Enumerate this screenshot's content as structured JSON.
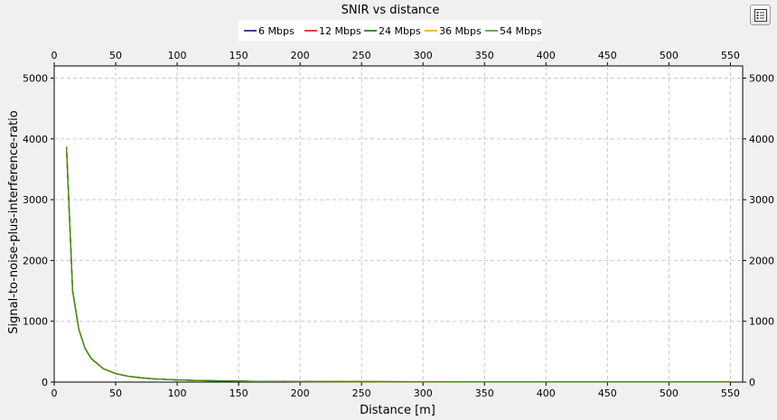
{
  "toolbar": {
    "options_icon": "list-settings-icon"
  },
  "chart_data": {
    "type": "line",
    "title": "SNIR vs distance",
    "xlabel": "Distance [m]",
    "ylabel": "Signal-to-noise-plus-interference-ratio",
    "xlim": [
      0,
      560
    ],
    "ylim": [
      0,
      5200
    ],
    "xticks": [
      0,
      50,
      100,
      150,
      200,
      250,
      300,
      350,
      400,
      450,
      500,
      550
    ],
    "yticks": [
      0,
      1000,
      2000,
      3000,
      4000,
      5000
    ],
    "grid": true,
    "legend_position": "top",
    "x": [
      10,
      15,
      20,
      25,
      30,
      40,
      50,
      60,
      70,
      80,
      100,
      120,
      160,
      200,
      300,
      400,
      500,
      550
    ],
    "series": [
      {
        "name": "6 Mbps",
        "color": "#00008b",
        "values": [
          3870,
          1500,
          870,
          560,
          390,
          220,
          140,
          97,
          71,
          54,
          35,
          24,
          13,
          8,
          4,
          2,
          1,
          1
        ]
      },
      {
        "name": "12 Mbps",
        "color": "#e00000",
        "values": [
          3870,
          1500,
          870,
          560,
          390,
          220,
          140,
          97,
          71,
          54,
          35,
          24,
          13,
          8,
          4,
          2,
          1,
          1
        ]
      },
      {
        "name": "24 Mbps",
        "color": "#006400",
        "values": [
          3870,
          1500,
          870,
          560,
          390,
          220,
          140,
          97,
          71,
          54,
          35,
          24,
          13,
          8,
          4,
          2,
          1,
          1
        ]
      },
      {
        "name": "36 Mbps",
        "color": "#e8a000",
        "values": [
          3870,
          1500,
          870,
          560,
          390,
          220,
          140,
          97,
          71,
          54,
          35,
          24,
          13,
          8,
          4,
          2,
          1,
          1
        ]
      },
      {
        "name": "54 Mbps",
        "color": "#3c8c14",
        "values": [
          3870,
          1500,
          870,
          560,
          390,
          220,
          140,
          97,
          71,
          54,
          35,
          24,
          13,
          8,
          4,
          2,
          1,
          1
        ]
      }
    ]
  }
}
